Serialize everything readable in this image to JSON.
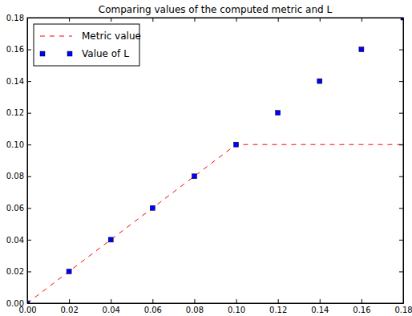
{
  "chart_data": {
    "type": "line",
    "title": "Comparing values of the computed metric and L",
    "x": [
      0,
      0.02,
      0.04,
      0.06,
      0.08,
      0.1,
      0.12,
      0.14,
      0.16,
      0.18
    ],
    "series": [
      {
        "name": "Metric value",
        "type": "line",
        "color": "#ff0000",
        "line_style": "dashed",
        "values": [
          0,
          0.02,
          0.04,
          0.06,
          0.08,
          0.1,
          0.1,
          0.1,
          0.1,
          0.1
        ]
      },
      {
        "name": "Value of L",
        "type": "scatter",
        "color": "#0000ff",
        "marker": "square",
        "values": [
          0,
          0.02,
          0.04,
          0.06,
          0.08,
          0.1,
          0.12,
          0.14,
          0.16,
          0.18
        ]
      }
    ],
    "xlim": [
      0,
      0.18
    ],
    "ylim": [
      0,
      0.18
    ],
    "xticks": [
      {
        "value": 0,
        "label": "0.00"
      },
      {
        "value": 0.02,
        "label": "0.02"
      },
      {
        "value": 0.04,
        "label": "0.04"
      },
      {
        "value": 0.06,
        "label": "0.06"
      },
      {
        "value": 0.08,
        "label": "0.08"
      },
      {
        "value": 0.1,
        "label": "0.10"
      },
      {
        "value": 0.12,
        "label": "0.12"
      },
      {
        "value": 0.14,
        "label": "0.14"
      },
      {
        "value": 0.16,
        "label": "0.16"
      },
      {
        "value": 0.18,
        "label": "0.18"
      }
    ],
    "yticks": [
      {
        "value": 0,
        "label": "0.00"
      },
      {
        "value": 0.02,
        "label": "0.02"
      },
      {
        "value": 0.04,
        "label": "0.04"
      },
      {
        "value": 0.06,
        "label": "0.06"
      },
      {
        "value": 0.08,
        "label": "0.08"
      },
      {
        "value": 0.1,
        "label": "0.10"
      },
      {
        "value": 0.12,
        "label": "0.12"
      },
      {
        "value": 0.14,
        "label": "0.14"
      },
      {
        "value": 0.16,
        "label": "0.16"
      },
      {
        "value": 0.18,
        "label": "0.18"
      }
    ],
    "grid": false,
    "legend": "upper-left"
  }
}
